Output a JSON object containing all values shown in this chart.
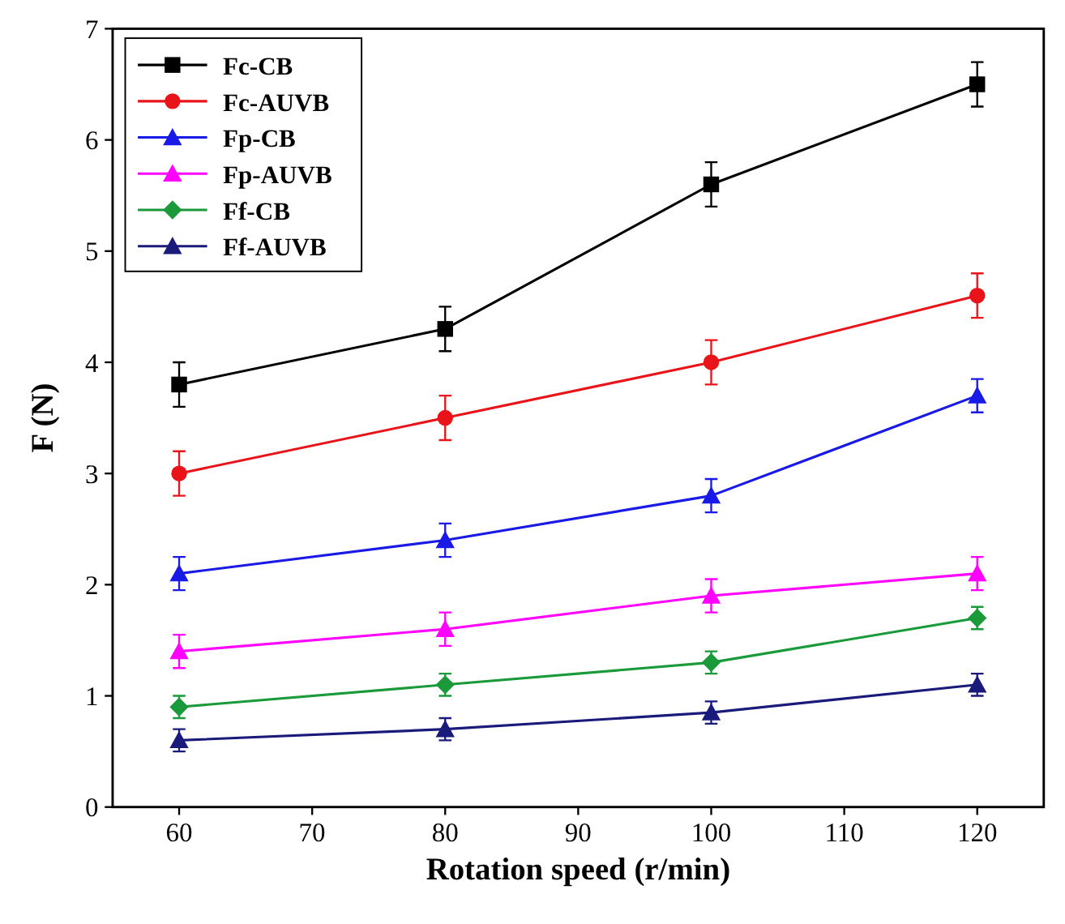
{
  "chart_data": {
    "type": "line",
    "xlabel": "Rotation speed (r/min)",
    "ylabel": "F (N)",
    "x": [
      60,
      80,
      100,
      120
    ],
    "xlim": [
      55,
      125
    ],
    "xticks": [
      60,
      70,
      80,
      90,
      100,
      110,
      120
    ],
    "ylim": [
      0,
      7
    ],
    "yticks": [
      0,
      1,
      2,
      3,
      4,
      5,
      6,
      7
    ],
    "grid": false,
    "legend": "top left",
    "line_style": "solid",
    "series": [
      {
        "name": "Fc-CB",
        "color": "#000000",
        "marker": "square",
        "values": [
          3.8,
          4.3,
          5.6,
          6.5
        ],
        "errors": [
          0.2,
          0.2,
          0.2,
          0.2
        ]
      },
      {
        "name": "Fc-AUVB",
        "color": "#e8141a",
        "marker": "circle",
        "values": [
          3.0,
          3.5,
          4.0,
          4.6
        ],
        "errors": [
          0.2,
          0.2,
          0.2,
          0.2
        ]
      },
      {
        "name": "Fp-CB",
        "color": "#1a1ae6",
        "marker": "triangle",
        "values": [
          2.1,
          2.4,
          2.8,
          3.7
        ],
        "errors": [
          0.15,
          0.15,
          0.15,
          0.15
        ]
      },
      {
        "name": "Fp-AUVB",
        "color": "#ff00ff",
        "marker": "triangle",
        "values": [
          1.4,
          1.6,
          1.9,
          2.1
        ],
        "errors": [
          0.15,
          0.15,
          0.15,
          0.15
        ]
      },
      {
        "name": "Ff-CB",
        "color": "#1a9a3a",
        "marker": "diamond",
        "values": [
          0.9,
          1.1,
          1.3,
          1.7
        ],
        "errors": [
          0.1,
          0.1,
          0.1,
          0.1
        ]
      },
      {
        "name": "Ff-AUVB",
        "color": "#1a1a7a",
        "marker": "triangle",
        "values": [
          0.6,
          0.7,
          0.85,
          1.1
        ],
        "errors": [
          0.1,
          0.1,
          0.1,
          0.1
        ]
      }
    ]
  }
}
